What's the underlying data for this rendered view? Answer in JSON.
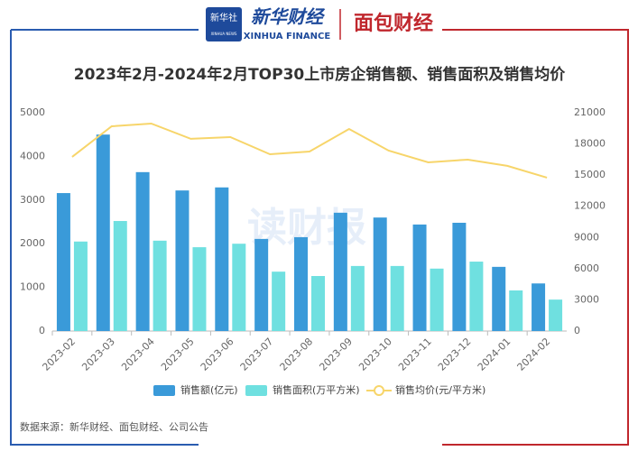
{
  "header": {
    "logo_small": "新华社",
    "logo_small_en": "XINHUA NEWS",
    "brand": "新华财经",
    "brand_en": "XINHUA FINANCE",
    "partner": "面包财经"
  },
  "chart_data": {
    "type": "bar",
    "title": "2023年2月-2024年2月TOP30上市房企销售额、销售面积及销售均价",
    "watermark": "读财报",
    "source": "数据来源：新华财经、面包财经、公司公告",
    "categories": [
      "2023-02",
      "2023-03",
      "2023-04",
      "2023-05",
      "2023-06",
      "2023-07",
      "2023-08",
      "2023-09",
      "2023-10",
      "2023-11",
      "2023-12",
      "2024-01",
      "2024-02"
    ],
    "series": [
      {
        "name": "销售额(亿元)",
        "type": "bar",
        "color": "#3a9ad9",
        "values": [
          3160,
          4500,
          3640,
          3220,
          3290,
          2110,
          2150,
          2710,
          2600,
          2440,
          2480,
          1470,
          1090
        ]
      },
      {
        "name": "销售面积(万平方米)",
        "type": "bar",
        "color": "#6fe0e0",
        "values": [
          2050,
          2520,
          2070,
          1920,
          2000,
          1360,
          1260,
          1490,
          1490,
          1430,
          1590,
          930,
          720
        ]
      },
      {
        "name": "销售均价(元/平方米)",
        "type": "line",
        "axis": "y2",
        "color": "#f7d56a",
        "values": [
          16750,
          19700,
          19960,
          18490,
          18660,
          17010,
          17270,
          19440,
          17360,
          16230,
          16490,
          15890,
          14760
        ]
      }
    ],
    "ylim": [
      0,
      5000
    ],
    "yticks": [
      0,
      1000,
      2000,
      3000,
      4000,
      5000
    ],
    "y2lim": [
      0,
      21000
    ],
    "y2ticks": [
      0,
      3000,
      6000,
      9000,
      12000,
      15000,
      18000,
      21000
    ],
    "grid": false
  }
}
